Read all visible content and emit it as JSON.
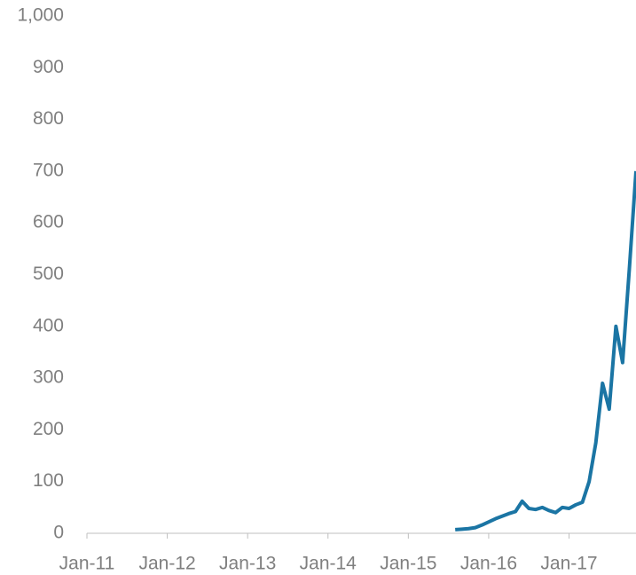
{
  "chart_data": {
    "type": "line",
    "x": [
      "2015-08",
      "2015-09",
      "2015-10",
      "2015-11",
      "2015-12",
      "2016-01",
      "2016-02",
      "2016-03",
      "2016-04",
      "2016-05",
      "2016-06",
      "2016-07",
      "2016-08",
      "2016-09",
      "2016-10",
      "2016-11",
      "2016-12",
      "2017-01",
      "2017-02",
      "2017-03",
      "2017-04",
      "2017-05",
      "2017-06",
      "2017-07",
      "2017-08",
      "2017-09",
      "2017-10",
      "2017-11"
    ],
    "series": [
      {
        "color": "#1b75a4",
        "values": [
          7,
          8,
          9,
          11,
          16,
          22,
          28,
          33,
          38,
          42,
          62,
          48,
          46,
          50,
          44,
          40,
          50,
          48,
          55,
          60,
          100,
          175,
          290,
          240,
          400,
          330,
          510,
          700
        ]
      }
    ],
    "xlim": [
      "2011-01",
      "2017-11"
    ],
    "xticks": [
      {
        "value": "2011-01",
        "label": "Jan-11"
      },
      {
        "value": "2012-01",
        "label": "Jan-12"
      },
      {
        "value": "2013-01",
        "label": "Jan-13"
      },
      {
        "value": "2014-01",
        "label": "Jan-14"
      },
      {
        "value": "2015-01",
        "label": "Jan-15"
      },
      {
        "value": "2016-01",
        "label": "Jan-16"
      },
      {
        "value": "2017-01",
        "label": "Jan-17"
      }
    ],
    "ylim": [
      0,
      1000
    ],
    "yticks": [
      0,
      100,
      200,
      300,
      400,
      500,
      600,
      700,
      800,
      900,
      {
        "value": 1000,
        "label": "1,000"
      }
    ]
  }
}
